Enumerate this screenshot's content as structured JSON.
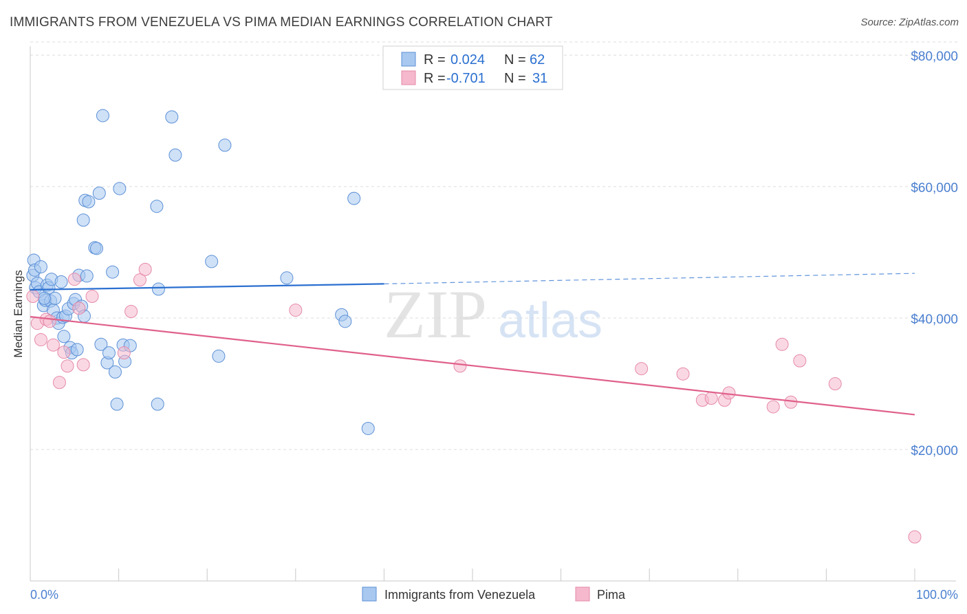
{
  "header": {
    "title": "IMMIGRANTS FROM VENEZUELA VS PIMA MEDIAN EARNINGS CORRELATION CHART",
    "source": "Source: ZipAtlas.com"
  },
  "watermark": {
    "zip": "ZIP",
    "atlas": "atlas"
  },
  "colors": {
    "blue_fill": "#a8c8f0",
    "blue_stroke": "#5b8fd6",
    "blue_line": "#2a6fd0",
    "pink_fill": "#f5b8cc",
    "pink_stroke": "#e58aa8",
    "pink_line": "#e0608a",
    "axis_label": "#4a7fd0",
    "grid": "#dcdcdc"
  },
  "legend_top": [
    {
      "r_label": "R =",
      "r_value": "0.024",
      "n_label": "N =",
      "n_value": "62"
    },
    {
      "r_label": "R =",
      "r_value": "-0.701",
      "n_label": "N =",
      "n_value": "31"
    }
  ],
  "chart_data": {
    "type": "scatter",
    "title": "IMMIGRANTS FROM VENEZUELA VS PIMA MEDIAN EARNINGS CORRELATION CHART",
    "xlabel": "",
    "ylabel": "Median Earnings",
    "xlim": [
      0,
      100
    ],
    "ylim": [
      0,
      82000
    ],
    "x_tick_labels": [
      "0.0%",
      "100.0%"
    ],
    "y_ticks": [
      20000,
      40000,
      60000,
      80000
    ],
    "y_tick_labels": [
      "$20,000",
      "$40,000",
      "$60,000",
      "$80,000"
    ],
    "grid": true,
    "legend": [
      "Immigrants from Venezuela",
      "Pima"
    ],
    "series": [
      {
        "name": "Immigrants from Venezuela",
        "r": 0.024,
        "n": 62,
        "trend": {
          "x0": 0,
          "y0": 44300,
          "x1": 40,
          "y1": 45200,
          "dash_to_x": 100,
          "dash_to_y": 46800
        },
        "points": [
          [
            0.3,
            46500
          ],
          [
            0.4,
            48800
          ],
          [
            0.5,
            47300
          ],
          [
            0.6,
            44600
          ],
          [
            0.8,
            45300
          ],
          [
            1.0,
            44000
          ],
          [
            1.2,
            47800
          ],
          [
            1.5,
            41900
          ],
          [
            1.7,
            42700
          ],
          [
            1.9,
            45000
          ],
          [
            2.1,
            44600
          ],
          [
            2.3,
            42600
          ],
          [
            2.4,
            45900
          ],
          [
            2.6,
            41200
          ],
          [
            2.8,
            43000
          ],
          [
            3.0,
            40000
          ],
          [
            3.2,
            39200
          ],
          [
            3.5,
            45500
          ],
          [
            3.7,
            40100
          ],
          [
            3.8,
            37200
          ],
          [
            4.0,
            40300
          ],
          [
            4.3,
            41400
          ],
          [
            4.5,
            35500
          ],
          [
            4.7,
            34700
          ],
          [
            4.9,
            42200
          ],
          [
            5.1,
            42800
          ],
          [
            5.3,
            35200
          ],
          [
            5.5,
            46500
          ],
          [
            5.8,
            41800
          ],
          [
            6.1,
            40300
          ],
          [
            6.4,
            46400
          ],
          [
            6.2,
            57900
          ],
          [
            6.0,
            54900
          ],
          [
            6.6,
            57700
          ],
          [
            7.3,
            50700
          ],
          [
            7.5,
            50600
          ],
          [
            7.8,
            59000
          ],
          [
            8.0,
            36000
          ],
          [
            8.2,
            70800
          ],
          [
            8.7,
            33200
          ],
          [
            8.9,
            34700
          ],
          [
            9.3,
            47000
          ],
          [
            9.6,
            31800
          ],
          [
            9.8,
            26900
          ],
          [
            10.1,
            59700
          ],
          [
            10.5,
            35900
          ],
          [
            10.7,
            33400
          ],
          [
            11.3,
            35800
          ],
          [
            14.3,
            57000
          ],
          [
            14.4,
            26900
          ],
          [
            14.5,
            44400
          ],
          [
            16.0,
            70600
          ],
          [
            16.4,
            64800
          ],
          [
            20.5,
            48600
          ],
          [
            21.3,
            34200
          ],
          [
            22.0,
            66300
          ],
          [
            29.0,
            46100
          ],
          [
            35.2,
            40500
          ],
          [
            35.6,
            39500
          ],
          [
            36.6,
            58200
          ],
          [
            38.2,
            23200
          ],
          [
            1.6,
            43000
          ]
        ]
      },
      {
        "name": "Pima",
        "r": -0.701,
        "n": 31,
        "trend": {
          "x0": 0,
          "y0": 40200,
          "x1": 100,
          "y1": 25300
        },
        "points": [
          [
            0.3,
            43300
          ],
          [
            0.8,
            39200
          ],
          [
            1.2,
            36700
          ],
          [
            1.8,
            39800
          ],
          [
            2.2,
            39500
          ],
          [
            2.6,
            35900
          ],
          [
            3.3,
            30200
          ],
          [
            3.8,
            34800
          ],
          [
            4.2,
            32700
          ],
          [
            5.0,
            45900
          ],
          [
            5.5,
            41500
          ],
          [
            6.0,
            32900
          ],
          [
            7.0,
            43300
          ],
          [
            10.6,
            34700
          ],
          [
            11.4,
            41000
          ],
          [
            12.4,
            45800
          ],
          [
            13.0,
            47400
          ],
          [
            30.0,
            41200
          ],
          [
            48.6,
            32700
          ],
          [
            69.1,
            32300
          ],
          [
            73.8,
            31500
          ],
          [
            76.0,
            27500
          ],
          [
            77.0,
            27800
          ],
          [
            78.5,
            27500
          ],
          [
            79.0,
            28600
          ],
          [
            84.0,
            26500
          ],
          [
            85.0,
            36000
          ],
          [
            86.0,
            27200
          ],
          [
            87.0,
            33500
          ],
          [
            91.0,
            30000
          ],
          [
            100.0,
            6700
          ]
        ]
      }
    ]
  }
}
